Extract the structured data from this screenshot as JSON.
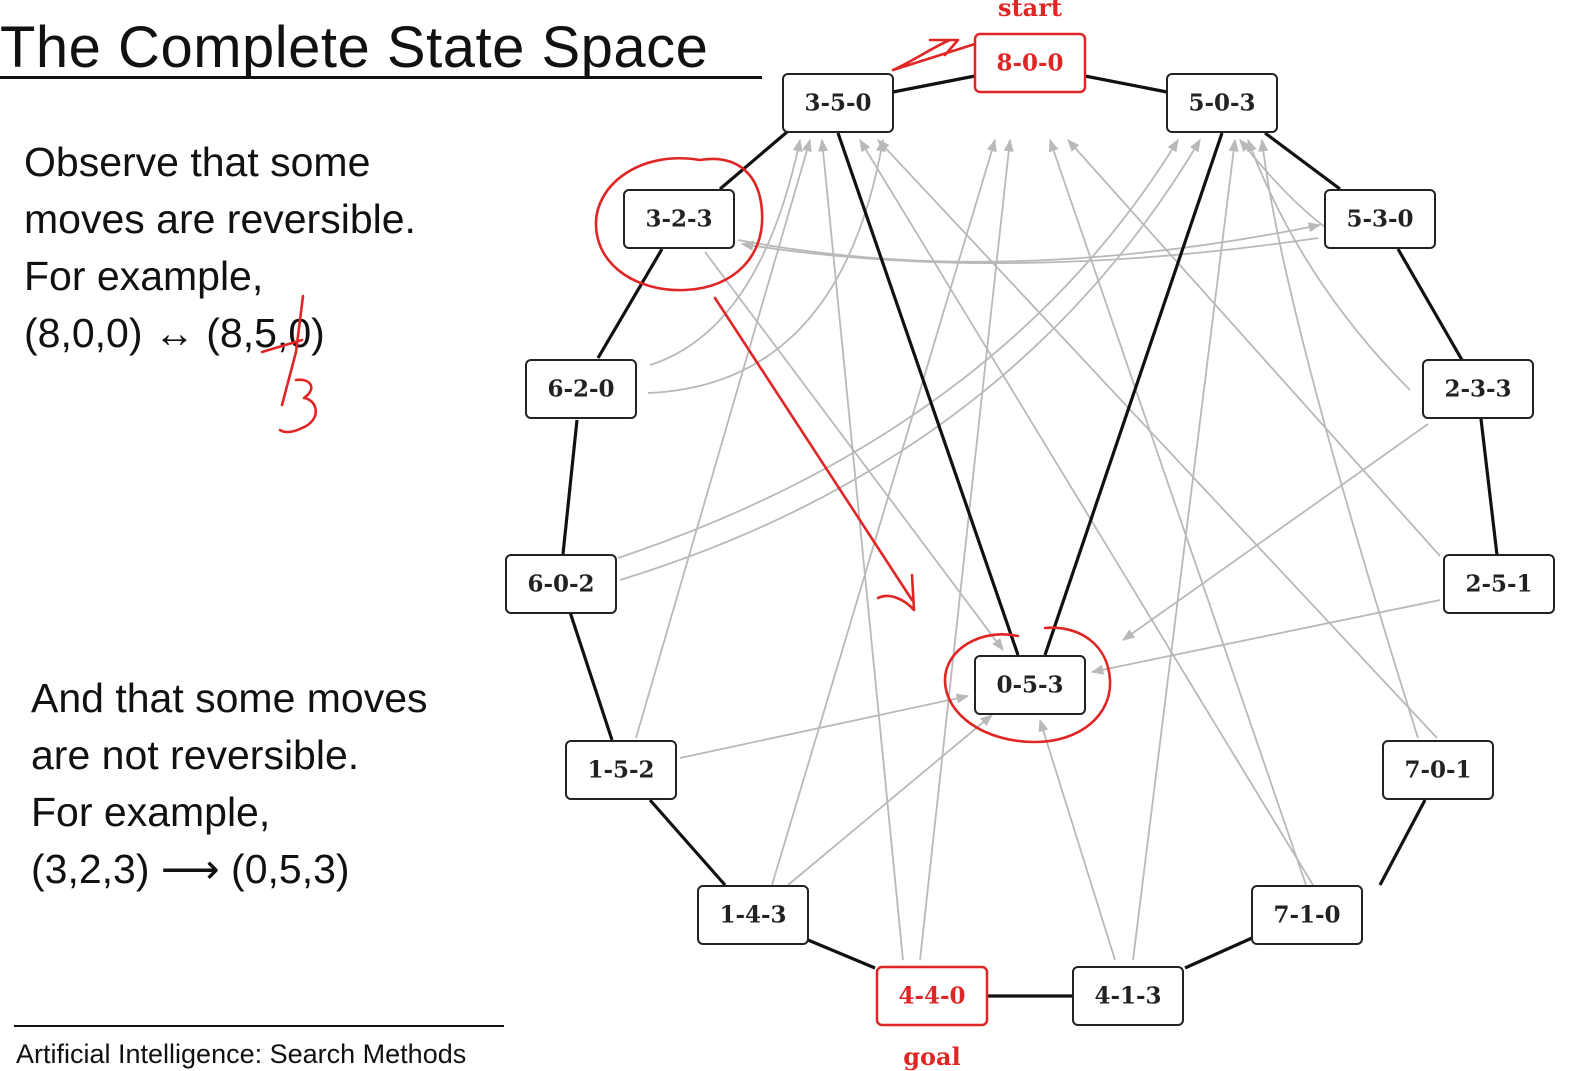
{
  "slide": {
    "title": "The Complete State Space",
    "para1": [
      "Observe that some",
      "moves are reversible.",
      "For example,",
      "(8,0,0) ↔ (8,5,0)"
    ],
    "para2": [
      "And that some moves",
      "are  not reversible.",
      "For example,",
      "(3,2,3) ⟶ (0,5,3)"
    ],
    "footer": "Artificial Intelligence: Search Methods"
  },
  "graph": {
    "start_label": "start",
    "goal_label": "goal",
    "nodes": {
      "n800": "8-0-0",
      "n350": "3-5-0",
      "n503": "5-0-3",
      "n323": "3-2-3",
      "n530": "5-3-0",
      "n620": "6-2-0",
      "n233": "2-3-3",
      "n602": "6-0-2",
      "n251": "2-5-1",
      "n053": "0-5-3",
      "n152": "1-5-2",
      "n701": "7-0-1",
      "n143": "1-4-3",
      "n710": "7-1-0",
      "n440": "4-4-0",
      "n413": "4-1-3"
    },
    "highlight_color": "#e02525",
    "edge_color": "#111111",
    "transition_color": "#b9b9b9"
  },
  "annotations": {
    "handwritten_digit": "3"
  }
}
